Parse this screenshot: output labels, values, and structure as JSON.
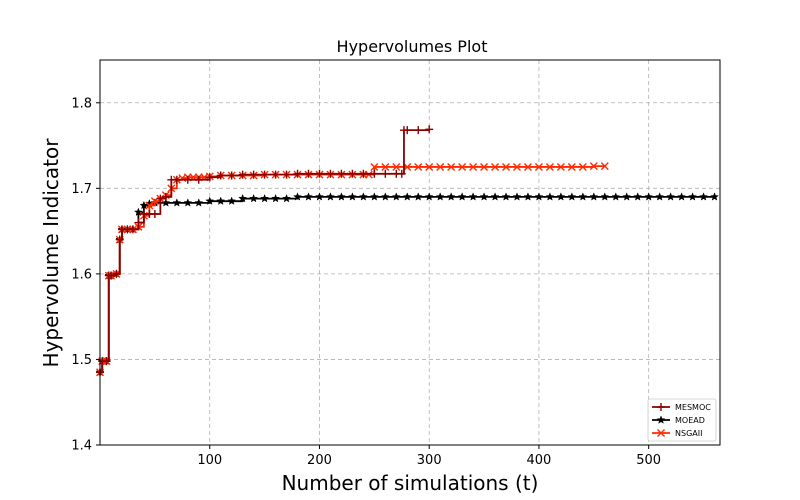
{
  "chart_data": {
    "type": "line",
    "title": "Hypervolumes Plot",
    "xlabel": "Number of simulations (t)",
    "ylabel": "Hypervolume Indicator",
    "xlim": [
      0,
      565
    ],
    "ylim": [
      1.4,
      1.85
    ],
    "xticks": [
      100,
      200,
      300,
      400,
      500
    ],
    "yticks": [
      1.4,
      1.5,
      1.6,
      1.7,
      1.8
    ],
    "grid": true,
    "legend_position": "lower-right",
    "series": [
      {
        "name": "MESMOC",
        "color": "#8b0000",
        "marker": "plus",
        "x": [
          0,
          2,
          6,
          8,
          10,
          15,
          18,
          20,
          25,
          30,
          35,
          40,
          45,
          50,
          55,
          60,
          65,
          70,
          80,
          90,
          100,
          110,
          120,
          130,
          140,
          150,
          160,
          170,
          180,
          190,
          200,
          210,
          220,
          230,
          240,
          250,
          260,
          270,
          275,
          277,
          280,
          290,
          300
        ],
        "y": [
          1.485,
          1.498,
          1.498,
          1.598,
          1.598,
          1.6,
          1.64,
          1.652,
          1.652,
          1.652,
          1.66,
          1.67,
          1.67,
          1.67,
          1.688,
          1.69,
          1.71,
          1.71,
          1.71,
          1.71,
          1.713,
          1.715,
          1.715,
          1.716,
          1.716,
          1.716,
          1.716,
          1.716,
          1.717,
          1.717,
          1.717,
          1.717,
          1.717,
          1.717,
          1.717,
          1.717,
          1.717,
          1.717,
          1.717,
          1.768,
          1.768,
          1.768,
          1.769
        ]
      },
      {
        "name": "MOEAD",
        "color": "#000000",
        "marker": "star",
        "x": [
          0,
          2,
          6,
          8,
          10,
          15,
          18,
          20,
          25,
          30,
          35,
          40,
          45,
          50,
          60,
          70,
          80,
          90,
          100,
          110,
          120,
          130,
          140,
          150,
          160,
          170,
          180,
          190,
          200,
          210,
          220,
          230,
          240,
          250,
          260,
          270,
          280,
          290,
          300,
          310,
          320,
          330,
          340,
          350,
          360,
          370,
          380,
          390,
          400,
          410,
          420,
          430,
          440,
          450,
          460,
          470,
          480,
          490,
          500,
          510,
          520,
          530,
          540,
          550,
          560
        ],
        "y": [
          1.485,
          1.498,
          1.498,
          1.598,
          1.598,
          1.6,
          1.64,
          1.652,
          1.652,
          1.652,
          1.672,
          1.68,
          1.682,
          1.683,
          1.683,
          1.683,
          1.683,
          1.683,
          1.685,
          1.685,
          1.685,
          1.688,
          1.688,
          1.688,
          1.688,
          1.688,
          1.69,
          1.69,
          1.69,
          1.69,
          1.69,
          1.69,
          1.69,
          1.69,
          1.69,
          1.69,
          1.69,
          1.69,
          1.69,
          1.69,
          1.69,
          1.69,
          1.69,
          1.69,
          1.69,
          1.69,
          1.69,
          1.69,
          1.69,
          1.69,
          1.69,
          1.69,
          1.69,
          1.69,
          1.69,
          1.69,
          1.69,
          1.69,
          1.69,
          1.69,
          1.69,
          1.69,
          1.69,
          1.69,
          1.69
        ]
      },
      {
        "name": "NSGAII",
        "color": "#ff2a00",
        "marker": "x",
        "x": [
          0,
          2,
          6,
          8,
          10,
          15,
          18,
          20,
          25,
          30,
          35,
          40,
          45,
          50,
          55,
          60,
          65,
          70,
          75,
          80,
          85,
          90,
          95,
          100,
          110,
          120,
          130,
          140,
          150,
          160,
          170,
          180,
          190,
          200,
          210,
          220,
          230,
          240,
          245,
          250,
          260,
          270,
          280,
          290,
          300,
          310,
          320,
          330,
          340,
          350,
          360,
          370,
          380,
          390,
          400,
          410,
          420,
          430,
          440,
          450,
          460
        ],
        "y": [
          1.485,
          1.498,
          1.498,
          1.598,
          1.598,
          1.6,
          1.64,
          1.652,
          1.652,
          1.652,
          1.655,
          1.668,
          1.68,
          1.685,
          1.688,
          1.692,
          1.7,
          1.71,
          1.712,
          1.713,
          1.713,
          1.713,
          1.713,
          1.714,
          1.715,
          1.715,
          1.715,
          1.715,
          1.716,
          1.716,
          1.716,
          1.716,
          1.716,
          1.716,
          1.716,
          1.716,
          1.716,
          1.716,
          1.716,
          1.725,
          1.725,
          1.725,
          1.725,
          1.725,
          1.725,
          1.725,
          1.725,
          1.725,
          1.725,
          1.725,
          1.725,
          1.725,
          1.725,
          1.725,
          1.725,
          1.725,
          1.725,
          1.725,
          1.725,
          1.726,
          1.726
        ]
      }
    ]
  }
}
